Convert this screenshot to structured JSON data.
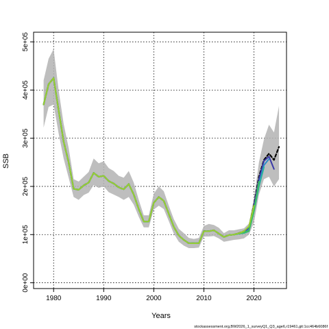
{
  "chart_data": {
    "type": "line",
    "xlabel": "Years",
    "ylabel": "SSB",
    "xlim": [
      1976,
      2026.5
    ],
    "ylim": [
      -12000,
      520000
    ],
    "x_ticks": [
      1980,
      1990,
      2000,
      2010,
      2020
    ],
    "x_tick_labels": [
      "1980",
      "1990",
      "2000",
      "2010",
      "2020"
    ],
    "y_ticks": [
      0,
      100000,
      200000,
      300000,
      400000,
      500000
    ],
    "y_tick_labels": [
      "0e+00",
      "1e+05",
      "2e+05",
      "3e+05",
      "4e+05",
      "5e+05"
    ],
    "grid": true,
    "caption": "stockassessment.org,BW2026_1_surveyQ1_Q3_age6,r19461,git:1cc464b6086f",
    "confidence_band": {
      "x": [
        1978,
        1979,
        1980,
        1981,
        1982,
        1983,
        1984,
        1985,
        1986,
        1987,
        1988,
        1989,
        1990,
        1991,
        1992,
        1993,
        1994,
        1995,
        1996,
        1997,
        1998,
        1999,
        2000,
        2001,
        2002,
        2003,
        2004,
        2005,
        2006,
        2007,
        2008,
        2009,
        2010,
        2011,
        2012,
        2013,
        2014,
        2015,
        2016,
        2017,
        2018,
        2019,
        2020,
        2021,
        2022,
        2023,
        2024,
        2025
      ],
      "upper": [
        420000,
        465000,
        485000,
        400000,
        330000,
        280000,
        215000,
        210000,
        220000,
        230000,
        258000,
        248000,
        252000,
        238000,
        232000,
        222000,
        218000,
        232000,
        208000,
        172000,
        140000,
        140000,
        185000,
        200000,
        190000,
        160000,
        132000,
        112000,
        103000,
        93000,
        91000,
        93000,
        118000,
        122000,
        120000,
        114000,
        103000,
        109000,
        109000,
        111000,
        113000,
        123000,
        175000,
        250000,
        298000,
        328000,
        312000,
        367000
      ],
      "lower": [
        322000,
        365000,
        370000,
        310000,
        258000,
        218000,
        178000,
        172000,
        182000,
        187000,
        203000,
        197000,
        200000,
        188000,
        183000,
        178000,
        172000,
        178000,
        162000,
        137000,
        115000,
        115000,
        152000,
        160000,
        153000,
        128000,
        102000,
        85000,
        77000,
        72000,
        72000,
        73000,
        96000,
        96000,
        97000,
        92000,
        85000,
        87000,
        89000,
        90000,
        92000,
        100000,
        125000,
        183000,
        215000,
        220000,
        200000,
        215000
      ]
    },
    "series": [
      {
        "color": "#000000",
        "dashed": true,
        "x": [
          1978,
          1979,
          1980,
          1981,
          1982,
          1983,
          1984,
          1985,
          1986,
          1987,
          1988,
          1989,
          1990,
          1991,
          1992,
          1993,
          1994,
          1995,
          1996,
          1997,
          1998,
          1999,
          2000,
          2001,
          2002,
          2003,
          2004,
          2005,
          2006,
          2007,
          2008,
          2009,
          2010,
          2011,
          2012,
          2013,
          2014,
          2015,
          2016,
          2017,
          2018,
          2019,
          2020,
          2021,
          2022,
          2023,
          2024,
          2025
        ],
        "values": [
          370000,
          412000,
          425000,
          358000,
          293000,
          250000,
          195000,
          193000,
          202000,
          208000,
          228000,
          220000,
          222000,
          211000,
          206000,
          198000,
          194000,
          205000,
          183000,
          153000,
          127000,
          127000,
          166000,
          178000,
          170000,
          143000,
          116000,
          98000,
          89000,
          82000,
          82000,
          82000,
          107000,
          107000,
          109000,
          102000,
          95000,
          99000,
          100000,
          103000,
          107000,
          115000,
          162000,
          220000,
          255000,
          268000,
          255000,
          282000
        ]
      },
      {
        "color": "#3a3aa8",
        "x": [
          1978,
          1979,
          1980,
          1981,
          1982,
          1983,
          1984,
          1985,
          1986,
          1987,
          1988,
          1989,
          1990,
          1991,
          1992,
          1993,
          1994,
          1995,
          1996,
          1997,
          1998,
          1999,
          2000,
          2001,
          2002,
          2003,
          2004,
          2005,
          2006,
          2007,
          2008,
          2009,
          2010,
          2011,
          2012,
          2013,
          2014,
          2015,
          2016,
          2017,
          2018,
          2019,
          2020,
          2021,
          2022,
          2023,
          2024
        ],
        "values": [
          370000,
          412000,
          425000,
          358000,
          293000,
          250000,
          195000,
          193000,
          202000,
          208000,
          228000,
          220000,
          222000,
          211000,
          206000,
          198000,
          194000,
          205000,
          183000,
          153000,
          127000,
          127000,
          166000,
          178000,
          170000,
          143000,
          116000,
          98000,
          89000,
          82000,
          82000,
          82000,
          107000,
          107000,
          109000,
          102000,
          95000,
          99000,
          100000,
          103000,
          106000,
          114000,
          160000,
          215000,
          253000,
          262000,
          236000
        ]
      },
      {
        "color": "#2f8fc8",
        "x": [
          1978,
          1979,
          1980,
          1981,
          1982,
          1983,
          1984,
          1985,
          1986,
          1987,
          1988,
          1989,
          1990,
          1991,
          1992,
          1993,
          1994,
          1995,
          1996,
          1997,
          1998,
          1999,
          2000,
          2001,
          2002,
          2003,
          2004,
          2005,
          2006,
          2007,
          2008,
          2009,
          2010,
          2011,
          2012,
          2013,
          2014,
          2015,
          2016,
          2017,
          2018,
          2019,
          2020,
          2021,
          2022,
          2023
        ],
        "values": [
          370000,
          412000,
          425000,
          358000,
          293000,
          250000,
          195000,
          193000,
          202000,
          208000,
          228000,
          220000,
          222000,
          211000,
          206000,
          198000,
          194000,
          205000,
          183000,
          153000,
          127000,
          127000,
          166000,
          178000,
          170000,
          143000,
          116000,
          98000,
          89000,
          82000,
          82000,
          82000,
          107000,
          107000,
          109000,
          102000,
          95000,
          99000,
          100000,
          102000,
          104000,
          110000,
          152000,
          205000,
          244000,
          257000
        ]
      },
      {
        "color": "#2ab0a0",
        "x": [
          1978,
          1979,
          1980,
          1981,
          1982,
          1983,
          1984,
          1985,
          1986,
          1987,
          1988,
          1989,
          1990,
          1991,
          1992,
          1993,
          1994,
          1995,
          1996,
          1997,
          1998,
          1999,
          2000,
          2001,
          2002,
          2003,
          2004,
          2005,
          2006,
          2007,
          2008,
          2009,
          2010,
          2011,
          2012,
          2013,
          2014,
          2015,
          2016,
          2017,
          2018,
          2019,
          2020,
          2021,
          2022
        ],
        "values": [
          370000,
          412000,
          425000,
          358000,
          293000,
          250000,
          195000,
          193000,
          202000,
          208000,
          228000,
          220000,
          222000,
          211000,
          206000,
          198000,
          194000,
          205000,
          183000,
          153000,
          127000,
          127000,
          166000,
          178000,
          170000,
          143000,
          116000,
          98000,
          89000,
          82000,
          82000,
          82000,
          107000,
          107000,
          109000,
          102000,
          95000,
          99000,
          100000,
          102000,
          103000,
          107000,
          148000,
          200000,
          240000
        ]
      },
      {
        "color": "#3fbf5a",
        "x": [
          1978,
          1979,
          1980,
          1981,
          1982,
          1983,
          1984,
          1985,
          1986,
          1987,
          1988,
          1989,
          1990,
          1991,
          1992,
          1993,
          1994,
          1995,
          1996,
          1997,
          1998,
          1999,
          2000,
          2001,
          2002,
          2003,
          2004,
          2005,
          2006,
          2007,
          2008,
          2009,
          2010,
          2011,
          2012,
          2013,
          2014,
          2015,
          2016,
          2017,
          2018,
          2019,
          2020,
          2021
        ],
        "values": [
          370000,
          412000,
          425000,
          358000,
          293000,
          250000,
          195000,
          193000,
          202000,
          208000,
          228000,
          220000,
          222000,
          211000,
          206000,
          198000,
          194000,
          205000,
          183000,
          153000,
          127000,
          127000,
          166000,
          178000,
          170000,
          143000,
          116000,
          98000,
          89000,
          82000,
          82000,
          82000,
          107000,
          107000,
          109000,
          102000,
          95000,
          99000,
          100000,
          102000,
          104000,
          108000,
          150000,
          210000
        ]
      },
      {
        "color": "#9acd32",
        "x": [
          1978,
          1979,
          1980,
          1981,
          1982,
          1983,
          1984,
          1985,
          1986,
          1987,
          1988,
          1989,
          1990,
          1991,
          1992,
          1993,
          1994,
          1995,
          1996,
          1997,
          1998,
          1999,
          2000,
          2001,
          2002,
          2003,
          2004,
          2005,
          2006,
          2007,
          2008,
          2009,
          2010,
          2011,
          2012,
          2013,
          2014,
          2015,
          2016,
          2017,
          2018,
          2019,
          2020
        ],
        "values": [
          370000,
          412000,
          425000,
          358000,
          293000,
          250000,
          195000,
          193000,
          202000,
          208000,
          228000,
          220000,
          222000,
          211000,
          206000,
          198000,
          194000,
          205000,
          183000,
          153000,
          127000,
          127000,
          166000,
          178000,
          170000,
          143000,
          116000,
          98000,
          89000,
          82000,
          82000,
          82000,
          107000,
          107000,
          109000,
          102000,
          95000,
          99000,
          100000,
          103000,
          107000,
          117000,
          160000
        ]
      }
    ]
  }
}
